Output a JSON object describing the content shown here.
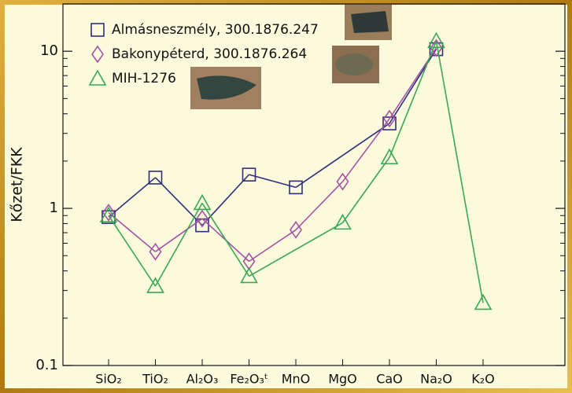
{
  "chart_data": {
    "type": "line",
    "ylabel": "Kőzet/FKK",
    "categories": [
      "SiO₂",
      "TiO₂",
      "Al₂O₃",
      "Fe₂O₃ᵗ",
      "MnO",
      "MgO",
      "CaO",
      "Na₂O",
      "K₂O"
    ],
    "series": [
      {
        "name": "Almásneszmély, 300.1876.247",
        "color": "#2e2f7c",
        "marker": "square",
        "values": [
          0.88,
          1.57,
          0.78,
          1.64,
          1.36,
          null,
          3.47,
          10.3,
          null
        ]
      },
      {
        "name": "Bakonypéterd, 300.1876.264",
        "color": "#a653a6",
        "marker": "diamond",
        "values": [
          0.94,
          0.53,
          0.86,
          0.46,
          0.73,
          1.48,
          3.72,
          10.5,
          null
        ]
      },
      {
        "name": "MIH-1276",
        "color": "#3aa855",
        "marker": "triangle",
        "values": [
          0.9,
          0.32,
          1.08,
          0.37,
          null,
          0.81,
          2.11,
          11.6,
          0.25
        ]
      }
    ],
    "ylim": [
      0.1,
      20
    ],
    "yticks": [
      0.1,
      1,
      10
    ],
    "yticks_minor": [
      0.2,
      0.3,
      0.4,
      0.5,
      0.6,
      0.7,
      0.8,
      0.9,
      2,
      3,
      4,
      5,
      6,
      7,
      8,
      9
    ],
    "log_y": true,
    "legend": "upper left"
  }
}
